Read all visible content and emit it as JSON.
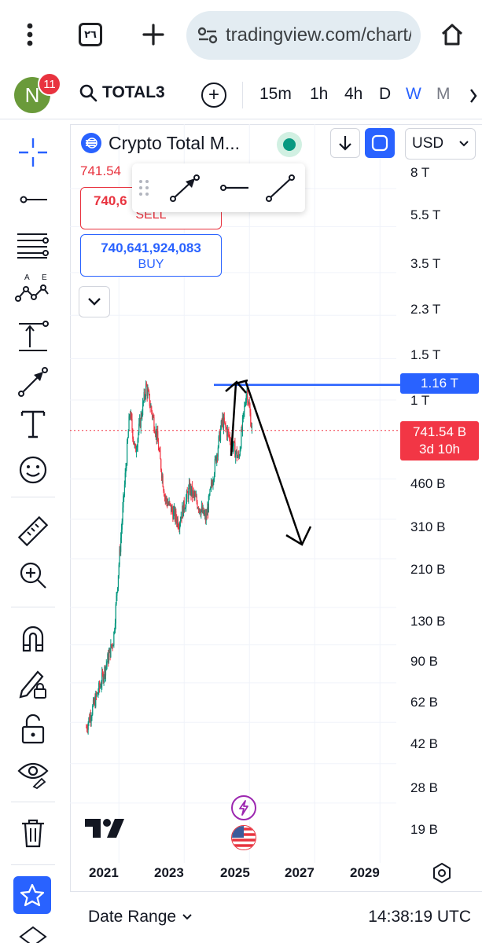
{
  "browser": {
    "tab_count": "٢٦",
    "url": "tradingview.com/chart/"
  },
  "header": {
    "avatar_letter": "N",
    "notification_count": "11",
    "symbol": "TOTAL3",
    "timeframes": [
      "15m",
      "1h",
      "4h",
      "D",
      "W",
      "M"
    ],
    "active_timeframe": "W"
  },
  "legend": {
    "title": "Crypto Total Market Cap Excluding BTC and ETH",
    "title_visible": "Crypto Total M...",
    "last_price": "741.54",
    "currency": "USD"
  },
  "trade": {
    "sell_value": "740,6",
    "sell_label": "SELL",
    "buy_value": "740,641,924,083",
    "buy_label": "BUY"
  },
  "chart_data": {
    "type": "candlestick",
    "y_scale": "log",
    "y_ticks": [
      "8 T",
      "5.5 T",
      "3.5 T",
      "2.3 T",
      "1.5 T",
      "1 T",
      "460 B",
      "310 B",
      "210 B",
      "130 B",
      "90 B",
      "62 B",
      "42 B",
      "28 B",
      "19 B"
    ],
    "x_ticks": [
      "2021",
      "2023",
      "2025",
      "2027",
      "2029"
    ],
    "horizontal_line_label": "1.16 T",
    "current_price_label": "741.54 B",
    "countdown_label": "3d 10h",
    "approx_path": [
      {
        "x": "2020-01",
        "y": 40
      },
      {
        "x": "2020-06",
        "y": 60
      },
      {
        "x": "2020-11",
        "y": 95
      },
      {
        "x": "2021-03",
        "y": 420
      },
      {
        "x": "2021-05",
        "y": 900
      },
      {
        "x": "2021-07",
        "y": 600
      },
      {
        "x": "2021-11",
        "y": 1150
      },
      {
        "x": "2022-03",
        "y": 700
      },
      {
        "x": "2022-06",
        "y": 380
      },
      {
        "x": "2022-11",
        "y": 300
      },
      {
        "x": "2023-03",
        "y": 420
      },
      {
        "x": "2023-09",
        "y": 310
      },
      {
        "x": "2024-03",
        "y": 820
      },
      {
        "x": "2024-09",
        "y": 560
      },
      {
        "x": "2024-12",
        "y": 1120
      },
      {
        "x": "2025-02",
        "y": 740
      }
    ],
    "colors": {
      "up": "#089981",
      "down": "#f23645",
      "line": "#2962ff",
      "arrow": "#000000"
    }
  },
  "bottom": {
    "date_range_label": "Date Range",
    "clock": "14:38:19 UTC"
  }
}
